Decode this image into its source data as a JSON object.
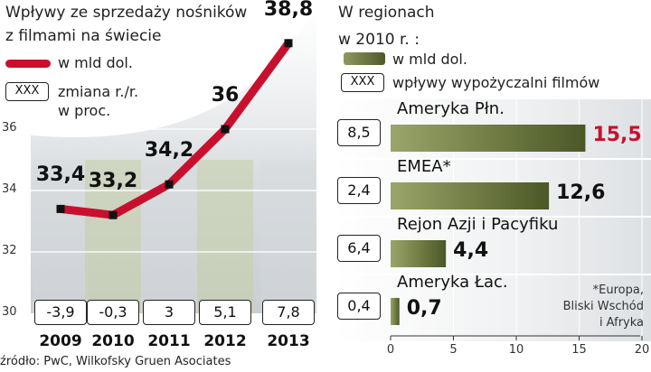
{
  "chart_data": [
    {
      "type": "line",
      "title": "Wpływy ze sprzedaży nośników z filmami na świecie",
      "title_lines": [
        "Wpływy ze sprzedaży nośników",
        "z filmami na świecie"
      ],
      "legend": {
        "line": "w mld dol.",
        "box_sample": "XXX",
        "box_lines": [
          "zmiana r./r.",
          "w proc."
        ]
      },
      "x": [
        "2009",
        "2010",
        "2011",
        "2012",
        "2013"
      ],
      "values": [
        33.4,
        33.2,
        34.2,
        36,
        38.8
      ],
      "value_labels": [
        "33,4",
        "33,2",
        "34,2",
        "36",
        "38,8"
      ],
      "changes": [
        "-3,9",
        "-0,3",
        "3",
        "5,1",
        "7,8"
      ],
      "y_ticks": [
        "30",
        "32",
        "34",
        "36"
      ],
      "ylim": [
        30,
        40
      ],
      "line_color": "#c8102e"
    },
    {
      "type": "bar",
      "orientation": "horizontal",
      "title": "W regionach w 2010 r. :",
      "title_lines": [
        "W regionach",
        "w 2010 r. :"
      ],
      "legend": {
        "bar": "w mld dol.",
        "box_sample": "XXX",
        "box": "wpływy wypożyczalni filmów"
      },
      "categories": [
        "Ameryka Płn.",
        "EMEA*",
        "Rejon Azji i Pacyfiku",
        "Ameryka Łac."
      ],
      "values": [
        15.5,
        12.6,
        4.4,
        0.7
      ],
      "value_labels": [
        "15,5",
        "12,6",
        "4,4",
        "0,7"
      ],
      "rental": [
        "8,5",
        "2,4",
        "6,4",
        "0,4"
      ],
      "x_ticks": [
        "0",
        "5",
        "10",
        "15",
        "20"
      ],
      "xlim": [
        0,
        20
      ],
      "highlight_color": "#c8102e",
      "bar_color": "#5f6d3a",
      "footnote_lines": [
        "*Europa,",
        "Bliski Wschód",
        "i Afryka"
      ]
    }
  ],
  "source": "źródło: PwC, Wilkofsky Gruen Asociates"
}
